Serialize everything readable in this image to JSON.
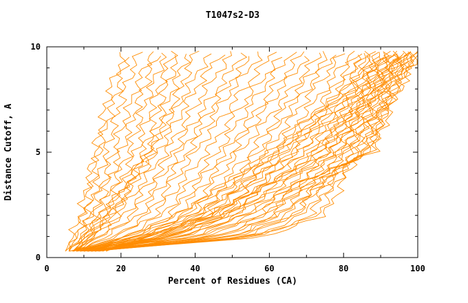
{
  "chart_data": {
    "type": "line",
    "title": "T1047s2-D3",
    "xlabel": "Percent of Residues (CA)",
    "ylabel": "Distance Cutoff, A",
    "xlim": [
      0,
      100
    ],
    "ylim": [
      0,
      10
    ],
    "x_ticks": [
      0,
      20,
      40,
      60,
      80,
      100
    ],
    "x_minor_step": 10,
    "y_ticks": [
      0,
      5,
      10
    ],
    "y_minor_step": 1,
    "grid": false,
    "legend": "none",
    "line_color": "#ff8c00",
    "axis_color": "#000000",
    "series_y": [
      0.3,
      1,
      2,
      5,
      8,
      9.7
    ],
    "series": [
      [
        5,
        7,
        9,
        13,
        17,
        21
      ],
      [
        5,
        8,
        10,
        14,
        19,
        22
      ],
      [
        6,
        8,
        11,
        16,
        21,
        25
      ],
      [
        6,
        9,
        12,
        18,
        24,
        28
      ],
      [
        6,
        10,
        13,
        20,
        26,
        30
      ],
      [
        7,
        10,
        14,
        22,
        28,
        32
      ],
      [
        7,
        11,
        15,
        24,
        30,
        34
      ],
      [
        7,
        12,
        16,
        26,
        32,
        36
      ],
      [
        8,
        12,
        17,
        27,
        34,
        38
      ],
      [
        8,
        13,
        18,
        28,
        36,
        40
      ],
      [
        6,
        10,
        15,
        28,
        38,
        44
      ],
      [
        6,
        11,
        17,
        30,
        40,
        47
      ],
      [
        7,
        12,
        19,
        32,
        43,
        50
      ],
      [
        7,
        14,
        21,
        34,
        46,
        53
      ],
      [
        7,
        15,
        23,
        36,
        48,
        56
      ],
      [
        8,
        16,
        25,
        38,
        50,
        58
      ],
      [
        8,
        18,
        27,
        40,
        53,
        61
      ],
      [
        8,
        19,
        29,
        43,
        56,
        64
      ],
      [
        9,
        21,
        31,
        46,
        58,
        66
      ],
      [
        9,
        22,
        33,
        48,
        61,
        69
      ],
      [
        9,
        24,
        35,
        50,
        63,
        71
      ],
      [
        10,
        25,
        37,
        52,
        66,
        74
      ],
      [
        10,
        27,
        39,
        55,
        68,
        76
      ],
      [
        10,
        28,
        41,
        57,
        70,
        78
      ],
      [
        11,
        30,
        43,
        59,
        72,
        80
      ],
      [
        11,
        31,
        45,
        61,
        75,
        82
      ],
      [
        12,
        33,
        47,
        63,
        77,
        84
      ],
      [
        12,
        34,
        49,
        66,
        79,
        85
      ],
      [
        6,
        22,
        35,
        60,
        80,
        86
      ],
      [
        6,
        24,
        37,
        62,
        81,
        87
      ],
      [
        7,
        26,
        39,
        63,
        82,
        88
      ],
      [
        7,
        28,
        41,
        65,
        83,
        88
      ],
      [
        7,
        30,
        43,
        66,
        83,
        89
      ],
      [
        8,
        32,
        45,
        68,
        84,
        90
      ],
      [
        8,
        34,
        47,
        69,
        85,
        90
      ],
      [
        8,
        36,
        49,
        70,
        85,
        91
      ],
      [
        9,
        38,
        51,
        72,
        86,
        91
      ],
      [
        9,
        40,
        53,
        73,
        86,
        92
      ],
      [
        9,
        42,
        55,
        74,
        87,
        92
      ],
      [
        10,
        44,
        57,
        75,
        87,
        93
      ],
      [
        10,
        46,
        59,
        76,
        88,
        93
      ],
      [
        10,
        48,
        61,
        77,
        88,
        94
      ],
      [
        11,
        50,
        63,
        78,
        89,
        94
      ],
      [
        11,
        52,
        65,
        79,
        89,
        95
      ],
      [
        11,
        54,
        67,
        80,
        90,
        95
      ],
      [
        12,
        56,
        69,
        81,
        90,
        96
      ],
      [
        12,
        58,
        71,
        82,
        91,
        96
      ],
      [
        12,
        60,
        73,
        83,
        91,
        97
      ],
      [
        13,
        55,
        75,
        84,
        92,
        97
      ],
      [
        13,
        50,
        66,
        85,
        92,
        98
      ],
      [
        13,
        45,
        62,
        86,
        93,
        98
      ],
      [
        14,
        40,
        58,
        86,
        93,
        99
      ],
      [
        14,
        36,
        54,
        87,
        94,
        99
      ],
      [
        14,
        33,
        50,
        87,
        94,
        100
      ],
      [
        15,
        30,
        46,
        88,
        95,
        100
      ],
      [
        15,
        28,
        42,
        80,
        95,
        100
      ],
      [
        16,
        26,
        44,
        76,
        90,
        98
      ],
      [
        16,
        24,
        48,
        72,
        88,
        96
      ]
    ]
  }
}
